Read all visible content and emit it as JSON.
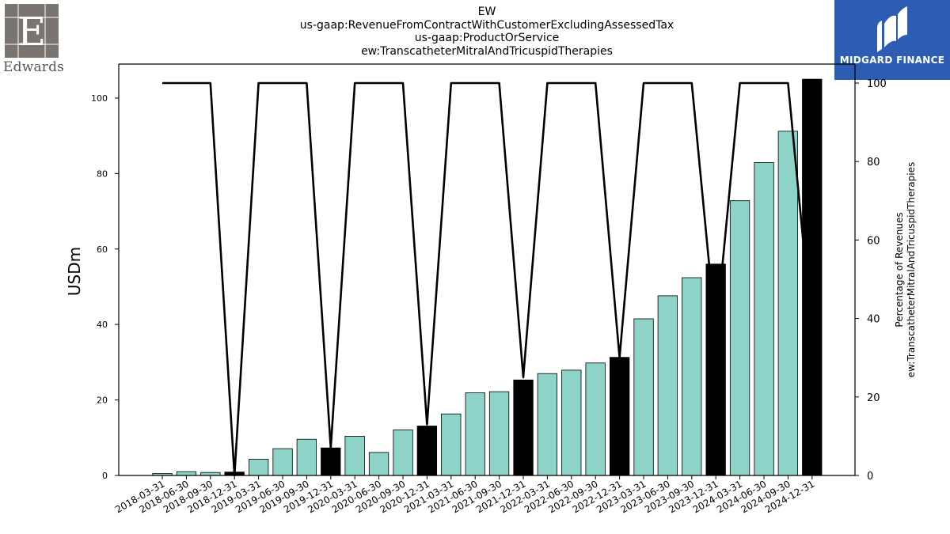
{
  "titles": [
    "EW",
    "us-gaap:RevenueFromContractWithCustomerExcludingAssessedTax",
    "us-gaap:ProductOrService",
    "ew:TranscatheterMitralAndTricuspidTherapies"
  ],
  "logo_left": {
    "text": "Edwards",
    "icon": "edwards-logo-icon"
  },
  "logo_right": {
    "text": "MIDGARD FINANCE",
    "icon": "midgard-logo-icon",
    "color": "#2c5db2"
  },
  "chart_data": {
    "type": "bar",
    "categories": [
      "2018-03-31",
      "2018-06-30",
      "2018-09-30",
      "2018-12-31",
      "2019-03-31",
      "2019-06-30",
      "2019-09-30",
      "2019-12-31",
      "2020-03-31",
      "2020-06-30",
      "2020-09-30",
      "2020-12-31",
      "2021-03-31",
      "2021-06-30",
      "2021-09-30",
      "2021-12-31",
      "2022-03-31",
      "2022-06-30",
      "2022-09-30",
      "2022-12-31",
      "2023-03-31",
      "2023-06-30",
      "2023-09-30",
      "2023-12-31",
      "2024-03-31",
      "2024-06-30",
      "2024-09-30",
      "2024-12-31"
    ],
    "series": [
      {
        "axis": "left",
        "type": "bar",
        "values": [
          0.5,
          1.0,
          0.8,
          0.9,
          4.3,
          7.1,
          9.6,
          7.3,
          10.4,
          6.1,
          12.1,
          13.1,
          16.3,
          21.9,
          22.2,
          25.3,
          27.0,
          27.9,
          29.8,
          31.3,
          41.5,
          47.6,
          52.4,
          56.0,
          72.8,
          82.9,
          91.2,
          105.0
        ],
        "highlight": [
          false,
          false,
          false,
          true,
          false,
          false,
          false,
          true,
          false,
          false,
          false,
          true,
          false,
          false,
          false,
          true,
          false,
          false,
          false,
          true,
          false,
          false,
          false,
          true,
          false,
          false,
          false,
          true
        ]
      },
      {
        "axis": "right",
        "type": "line",
        "values": [
          100,
          100,
          100,
          0,
          100,
          100,
          100,
          7,
          100,
          100,
          100,
          13,
          100,
          100,
          100,
          25,
          100,
          100,
          100,
          30,
          100,
          100,
          100,
          36,
          100,
          100,
          100,
          36
        ]
      }
    ],
    "ylabel": "USDm",
    "y2label": [
      "Percentage of Revenues",
      "ew:TranscatheterMitralAndTricuspidTherapies"
    ],
    "ylim": [
      0,
      109
    ],
    "y2lim": [
      0,
      100
    ],
    "yticks": [
      0,
      20,
      40,
      60,
      80,
      100
    ],
    "y2ticks": [
      0,
      20,
      40,
      60,
      80,
      100
    ],
    "colors": {
      "bar": "#8dd3c7",
      "highlight": "#000000",
      "line": "#000000",
      "edge": "#000000"
    },
    "grid": false,
    "legend": "none"
  }
}
